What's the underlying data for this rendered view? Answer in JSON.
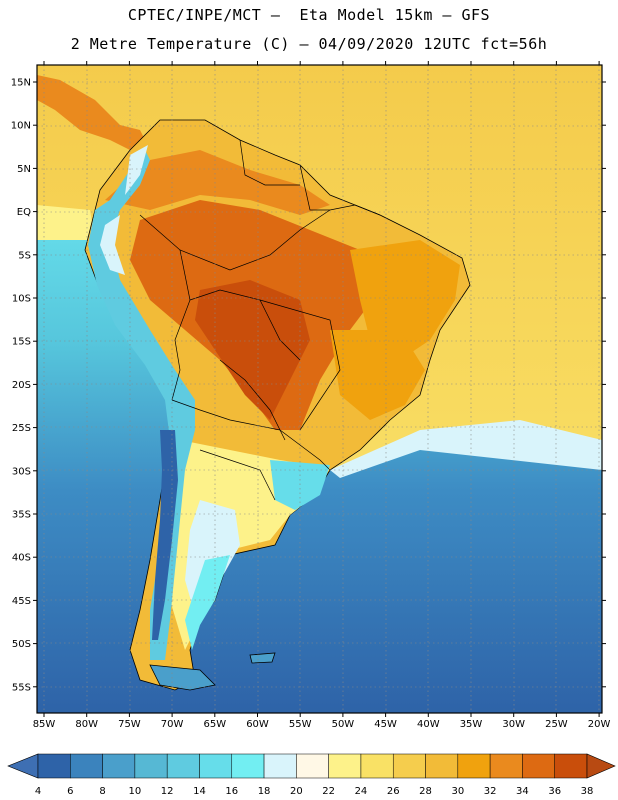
{
  "header": {
    "line1": "CPTEC/INPE/MCT –  Eta Model 15km – GFS",
    "line2": "2 Metre Temperature (C) – 04/09/2020 12UTC fct=56h"
  },
  "map": {
    "lat_labels": [
      "15N",
      "10N",
      "5N",
      "EQ",
      "5S",
      "10S",
      "15S",
      "20S",
      "25S",
      "30S",
      "35S",
      "40S",
      "45S",
      "50S",
      "55S"
    ],
    "lon_labels": [
      "85W",
      "80W",
      "75W",
      "70W",
      "65W",
      "60W",
      "55W",
      "50W",
      "45W",
      "40W",
      "35W",
      "30W",
      "25W",
      "20W"
    ]
  },
  "legend": {
    "ticks": [
      "4",
      "6",
      "8",
      "10",
      "12",
      "14",
      "16",
      "18",
      "20",
      "22",
      "24",
      "26",
      "28",
      "30",
      "32",
      "34",
      "36",
      "38"
    ],
    "colors": [
      "#2e63a8",
      "#3b83bd",
      "#4a9fcb",
      "#56b8d4",
      "#5fcbe0",
      "#66ddea",
      "#72eef2",
      "#d9f4fb",
      "#fff8e6",
      "#fdf28a",
      "#f9e165",
      "#f5cd4d",
      "#f2bb38",
      "#f0a20e",
      "#ea8a1e",
      "#dd6a12",
      "#c94e0b"
    ],
    "under_color": "#3e6fb3",
    "over_color": "#b84a12"
  }
}
